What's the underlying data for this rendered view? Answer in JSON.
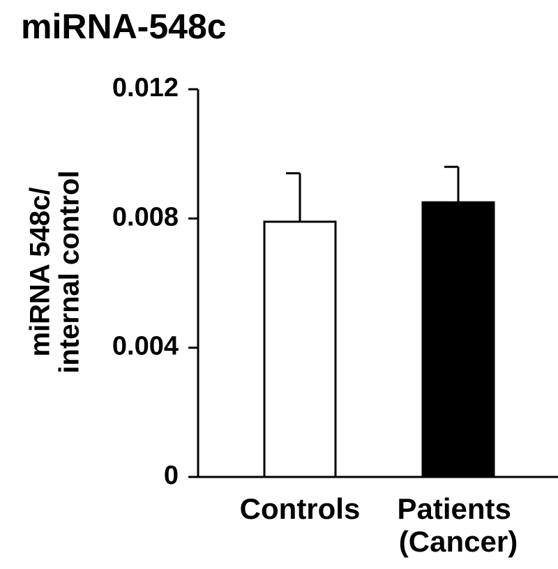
{
  "chart_data": {
    "type": "bar",
    "title": "miRNA-548c",
    "ylabel": [
      "miRNA 548c/",
      "internal control"
    ],
    "categories": [
      "Controls",
      "Patients (Cancer)"
    ],
    "values": [
      0.0079,
      0.0085
    ],
    "errors": [
      0.0015,
      0.0011
    ],
    "colors": [
      "#ffffff",
      "#000000"
    ],
    "edgecolor": "#000000",
    "ylim": [
      0,
      0.012
    ],
    "yticks": [
      0,
      0.004,
      0.008,
      0.012
    ],
    "grid": false
  }
}
